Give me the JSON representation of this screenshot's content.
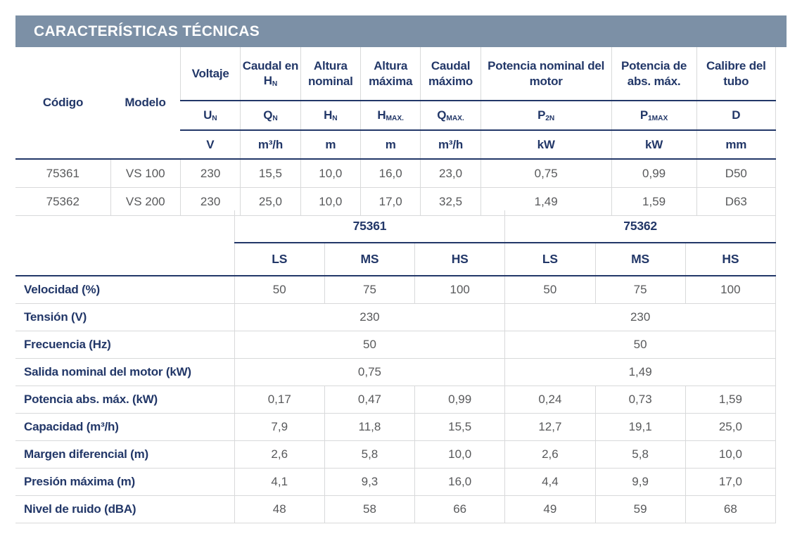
{
  "title": "CARACTERÍSTICAS TÉCNICAS",
  "colors": {
    "header_bar": "#7c90a6",
    "heading_navy": "#223768",
    "value_gray": "#58595b",
    "grid_line": "#d8d9da"
  },
  "spec_table": {
    "col_codigo": "Código",
    "col_modelo": "Modelo",
    "groups": [
      "Voltaje",
      "Caudal en H~N~",
      "Altura nominal",
      "Altura máxima",
      "Caudal máximo",
      "Potencia nominal del motor",
      "Potencia de abs. máx.",
      "Calibre del tubo"
    ],
    "symbols": [
      "U~N~",
      "Q~N~",
      "H~N~",
      "H~MAX.~",
      "Q~MAX.~",
      "P~2N~",
      "P~1MAX~",
      "D"
    ],
    "units": [
      "V",
      "m³/h",
      "m",
      "m",
      "m³/h",
      "kW",
      "kW",
      "mm"
    ],
    "rows": [
      [
        "75361",
        "VS 100",
        "230",
        "15,5",
        "10,0",
        "16,0",
        "23,0",
        "0,75",
        "0,99",
        "D50"
      ],
      [
        "75362",
        "VS 200",
        "230",
        "25,0",
        "10,0",
        "17,0",
        "32,5",
        "1,49",
        "1,59",
        "D63"
      ]
    ]
  },
  "speed_table": {
    "group_headers": [
      "75361",
      "75362"
    ],
    "speed_headers": [
      "LS",
      "MS",
      "HS",
      "LS",
      "MS",
      "HS"
    ],
    "rows": [
      {
        "label": "Velocidad (%)",
        "values": [
          "50",
          "75",
          "100",
          "50",
          "75",
          "100"
        ]
      },
      {
        "label": "Tensión (V)",
        "merged": true,
        "values": [
          "230",
          "230"
        ]
      },
      {
        "label": "Frecuencia (Hz)",
        "merged": true,
        "values": [
          "50",
          "50"
        ]
      },
      {
        "label": "Salida nominal del motor (kW)",
        "merged": true,
        "values": [
          "0,75",
          "1,49"
        ]
      },
      {
        "label": "Potencia abs. máx. (kW)",
        "values": [
          "0,17",
          "0,47",
          "0,99",
          "0,24",
          "0,73",
          "1,59"
        ]
      },
      {
        "label": "Capacidad (m³/h)",
        "values": [
          "7,9",
          "11,8",
          "15,5",
          "12,7",
          "19,1",
          "25,0"
        ]
      },
      {
        "label": "Margen diferencial (m)",
        "values": [
          "2,6",
          "5,8",
          "10,0",
          "2,6",
          "5,8",
          "10,0"
        ]
      },
      {
        "label": "Presión máxima (m)",
        "values": [
          "4,1",
          "9,3",
          "16,0",
          "4,4",
          "9,9",
          "17,0"
        ]
      },
      {
        "label": "Nivel de ruido (dBA)",
        "values": [
          "48",
          "58",
          "66",
          "49",
          "59",
          "68"
        ]
      }
    ]
  }
}
